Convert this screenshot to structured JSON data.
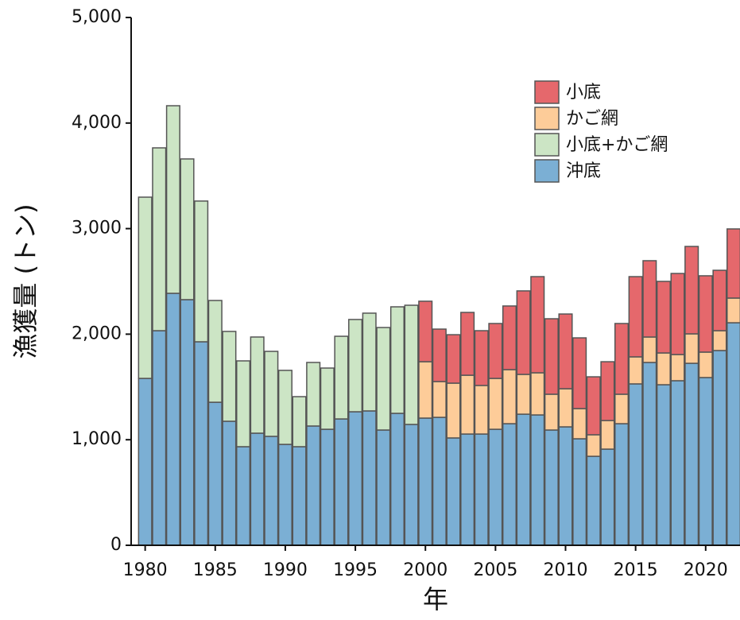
{
  "chart_data": {
    "type": "bar",
    "stacked": true,
    "x_label": "年",
    "y_label": "漁獲量 (トン)",
    "x": [
      1980,
      1981,
      1982,
      1983,
      1984,
      1985,
      1986,
      1987,
      1988,
      1989,
      1990,
      1991,
      1992,
      1993,
      1994,
      1995,
      1996,
      1997,
      1998,
      1999,
      2000,
      2001,
      2002,
      2003,
      2004,
      2005,
      2006,
      2007,
      2008,
      2009,
      2010,
      2011,
      2012,
      2013,
      2014,
      2015,
      2016,
      2017,
      2018,
      2019,
      2020,
      2021,
      2022
    ],
    "series": [
      {
        "name": "沖底",
        "color": "#7bafd4",
        "values": [
          1581,
          2033,
          2387,
          2327,
          1928,
          1355,
          1175,
          934,
          1062,
          1032,
          956,
          934,
          1130,
          1099,
          1197,
          1265,
          1273,
          1092,
          1250,
          1145,
          1205,
          1212,
          1017,
          1054,
          1054,
          1099,
          1152,
          1242,
          1235,
          1092,
          1122,
          1009,
          843,
          911,
          1152,
          1529,
          1732,
          1521,
          1559,
          1724,
          1589,
          1845,
          2108
        ]
      },
      {
        "name": "小底+かご網",
        "color": "#cce5c5",
        "values": [
          1717,
          1732,
          1777,
          1333,
          1333,
          964,
          851,
          813,
          911,
          805,
          701,
          474,
          602,
          580,
          783,
          874,
          926,
          971,
          1009,
          1129,
          null,
          null,
          null,
          null,
          null,
          null,
          null,
          null,
          null,
          null,
          null,
          null,
          null,
          null,
          null,
          null,
          null,
          null,
          null,
          null,
          null,
          null,
          null
        ]
      },
      {
        "name": "かご網",
        "color": "#fdcc99",
        "values": [
          null,
          null,
          null,
          null,
          null,
          null,
          null,
          null,
          null,
          null,
          null,
          null,
          null,
          null,
          null,
          null,
          null,
          null,
          null,
          null,
          534,
          339,
          519,
          557,
          460,
          482,
          512,
          377,
          399,
          339,
          361,
          286,
          204,
          271,
          279,
          256,
          241,
          301,
          248,
          279,
          241,
          188,
          234
        ]
      },
      {
        "name": "小底",
        "color": "#e5686c",
        "values": [
          null,
          null,
          null,
          null,
          null,
          null,
          null,
          null,
          null,
          null,
          null,
          null,
          null,
          null,
          null,
          null,
          null,
          null,
          null,
          null,
          573,
          497,
          459,
          595,
          519,
          520,
          603,
          791,
          911,
          715,
          708,
          670,
          549,
          557,
          670,
          760,
          723,
          678,
          768,
          828,
          723,
          572,
          655
        ]
      }
    ],
    "xlim": [
      1979,
      2022.45
    ],
    "xticks": [
      1980,
      1985,
      1990,
      1995,
      2000,
      2005,
      2010,
      2015,
      2020
    ],
    "ylim": [
      0,
      5000
    ],
    "yticks": [
      0,
      {
        "value": 1000,
        "label": "1,000"
      },
      {
        "value": 2000,
        "label": "2,000"
      },
      {
        "value": 3000,
        "label": "3,000"
      },
      {
        "value": 4000,
        "label": "4,000"
      },
      {
        "value": 5000,
        "label": "5,000"
      }
    ],
    "grid": false,
    "legend": "upper right"
  }
}
